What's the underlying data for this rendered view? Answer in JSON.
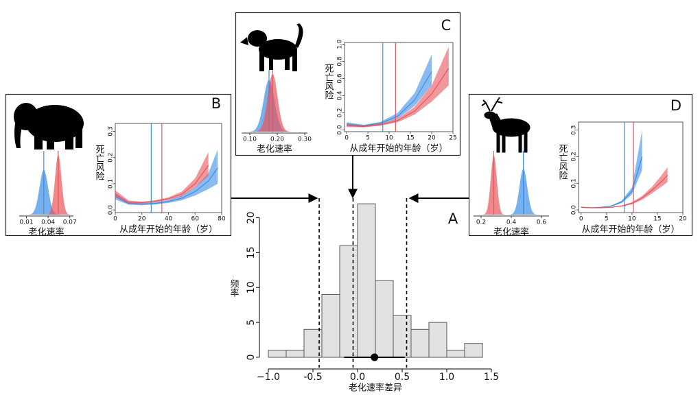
{
  "chart_data": [
    {
      "type": "histogram",
      "label": "A",
      "xlabel": "老化速率差异",
      "ylabel": "频率",
      "bins": [
        -1.0,
        -0.8,
        -0.6,
        -0.4,
        -0.2,
        0.0,
        0.2,
        0.4,
        0.6,
        0.8,
        1.0,
        1.2,
        1.4
      ],
      "counts": [
        1,
        1,
        4,
        9,
        16,
        22,
        11,
        6,
        4,
        5,
        1,
        2
      ],
      "color": "#e2e2e2",
      "xlim": [
        -1.0,
        1.5
      ],
      "xticks": [
        {
          "value": -1.0,
          "label": "−1.0"
        },
        -0.5,
        {
          "value": 0.0,
          "label": "0.0"
        },
        0.5,
        {
          "value": 1.0,
          "label": "1.0"
        },
        1.5
      ],
      "ylim": [
        0,
        23
      ],
      "yticks": [
        0,
        5,
        10,
        15,
        20
      ],
      "reference_lines": [
        -0.43,
        -0.05,
        0.55
      ],
      "point": 0.19,
      "interval": [
        -0.15,
        0.53
      ]
    },
    {
      "type": "panel",
      "label": "B",
      "density": {
        "type": "density",
        "xlabel": "老化速率",
        "xlim": [
          0.0,
          0.075
        ],
        "xticks": [
          0.01,
          0.04,
          0.07
        ],
        "series": [
          {
            "color": "#3a8ee6",
            "mean": 0.034,
            "sd": 0.006
          },
          {
            "color": "#e8545a",
            "mean": 0.054,
            "sd": 0.0045
          }
        ]
      },
      "mortality": {
        "type": "line",
        "xlabel": "从成年开始的年龄（岁）",
        "ylabel": "死亡风险",
        "xlim": [
          0,
          80
        ],
        "ylim": [
          -0.01,
          0.33
        ],
        "xticks": [
          0,
          20,
          40,
          60,
          80
        ],
        "yticks": [
          {
            "value": 0.0,
            "label": "0.0"
          },
          0.1,
          0.2,
          0.3
        ],
        "x": [
          0,
          10,
          20,
          30,
          40,
          50,
          60,
          70,
          77
        ],
        "series": [
          {
            "color": "#3a8ee6",
            "values": [
              0.05,
              0.025,
              0.022,
              0.025,
              0.032,
              0.045,
              0.07,
              0.11,
              0.16
            ],
            "lower": [
              0.04,
              0.02,
              0.018,
              0.021,
              0.027,
              0.037,
              0.055,
              0.08,
              0.1
            ],
            "upper": [
              0.065,
              0.03,
              0.026,
              0.029,
              0.038,
              0.054,
              0.085,
              0.14,
              0.23
            ]
          },
          {
            "color": "#e8545a",
            "values": [
              0.06,
              0.03,
              0.028,
              0.033,
              0.043,
              0.06,
              0.1,
              0.17,
              null
            ],
            "lower": [
              0.05,
              0.025,
              0.024,
              0.029,
              0.038,
              0.052,
              0.085,
              0.13,
              null
            ],
            "upper": [
              0.075,
              0.036,
              0.032,
              0.037,
              0.048,
              0.07,
              0.12,
              0.22,
              null
            ]
          }
        ],
        "vlines": [
          {
            "color": "#3a8ee6",
            "x": 27
          },
          {
            "color": "#e8545a",
            "x": 35
          }
        ]
      }
    },
    {
      "type": "panel",
      "label": "C",
      "density": {
        "type": "density",
        "xlabel": "老化速率",
        "xlim": [
          0.07,
          0.31
        ],
        "xticks": [
          {
            "value": 0.1,
            "label": "0.10"
          },
          {
            "value": 0.2,
            "label": "0.20"
          },
          {
            "value": 0.3,
            "label": "0.30"
          }
        ],
        "series": [
          {
            "color": "#3a8ee6",
            "mean": 0.17,
            "sd": 0.02
          },
          {
            "color": "#e8545a",
            "mean": 0.183,
            "sd": 0.018
          }
        ]
      },
      "mortality": {
        "type": "line",
        "xlabel": "从成年开始的年龄（岁）",
        "ylabel": "死亡风险",
        "xlim": [
          -0.5,
          25
        ],
        "ylim": [
          -0.02,
          1.02
        ],
        "xticks": [
          0,
          5,
          10,
          15,
          20,
          25
        ],
        "yticks": [
          {
            "value": 0.0,
            "label": "0.0"
          },
          0.2,
          0.4,
          0.6,
          0.8,
          {
            "value": 1.0,
            "label": "1.0"
          }
        ],
        "x": [
          0,
          4,
          8,
          12,
          16,
          20,
          24
        ],
        "series": [
          {
            "color": "#3a8ee6",
            "values": [
              0.07,
              0.05,
              0.08,
              0.16,
              0.35,
              0.68,
              null
            ],
            "lower": [
              0.05,
              0.04,
              0.065,
              0.13,
              0.28,
              0.52,
              null
            ],
            "upper": [
              0.09,
              0.06,
              0.095,
              0.2,
              0.43,
              0.88,
              null
            ]
          },
          {
            "color": "#e8545a",
            "values": [
              0.05,
              0.04,
              0.06,
              0.11,
              0.22,
              0.42,
              0.72
            ],
            "lower": [
              0.035,
              0.03,
              0.05,
              0.09,
              0.18,
              0.33,
              0.52
            ],
            "upper": [
              0.065,
              0.05,
              0.075,
              0.13,
              0.27,
              0.52,
              0.97
            ]
          }
        ],
        "vlines": [
          {
            "color": "#3a8ee6",
            "x": 8.5
          },
          {
            "color": "#e8545a",
            "x": 11.5
          }
        ]
      }
    },
    {
      "type": "panel",
      "label": "D",
      "density": {
        "type": "density",
        "xlabel": "老化速率",
        "xlim": [
          0.15,
          0.65
        ],
        "xticks": [
          0.2,
          0.4,
          0.6
        ],
        "series": [
          {
            "color": "#e8545a",
            "mean": 0.284,
            "sd": 0.02
          },
          {
            "color": "#3a8ee6",
            "mean": 0.48,
            "sd": 0.026
          }
        ]
      },
      "mortality": {
        "type": "line",
        "xlabel": "从成年开始的年龄（岁）",
        "ylabel": "死亡风险",
        "xlim": [
          -0.5,
          20
        ],
        "ylim": [
          -0.01,
          0.33
        ],
        "xticks": [
          0,
          5,
          10,
          15,
          20
        ],
        "yticks": [
          {
            "value": 0.0,
            "label": "0.0"
          },
          0.1,
          0.2,
          0.3
        ],
        "x": [
          0,
          2,
          4,
          6,
          8,
          10,
          12,
          14,
          16,
          17
        ],
        "series": [
          {
            "color": "#3a8ee6",
            "values": [
              0.01,
              0.008,
              0.01,
              0.015,
              0.03,
              0.07,
              0.2,
              null,
              null,
              null
            ],
            "lower": [
              0.008,
              0.007,
              0.009,
              0.013,
              0.026,
              0.058,
              0.15,
              null,
              null,
              null
            ],
            "upper": [
              0.012,
              0.009,
              0.011,
              0.017,
              0.035,
              0.085,
              0.3,
              null,
              null,
              null
            ]
          },
          {
            "color": "#e8545a",
            "values": [
              0.01,
              0.008,
              0.008,
              0.01,
              0.015,
              0.025,
              0.045,
              0.075,
              0.11,
              0.13
            ],
            "lower": [
              0.008,
              0.007,
              0.007,
              0.009,
              0.013,
              0.021,
              0.038,
              0.063,
              0.09,
              0.105
            ],
            "upper": [
              0.012,
              0.009,
              0.009,
              0.011,
              0.017,
              0.029,
              0.052,
              0.088,
              0.135,
              0.16
            ]
          }
        ],
        "vlines": [
          {
            "color": "#3a8ee6",
            "x": 8.5
          },
          {
            "color": "#e8545a",
            "x": 10.3
          }
        ]
      }
    }
  ]
}
